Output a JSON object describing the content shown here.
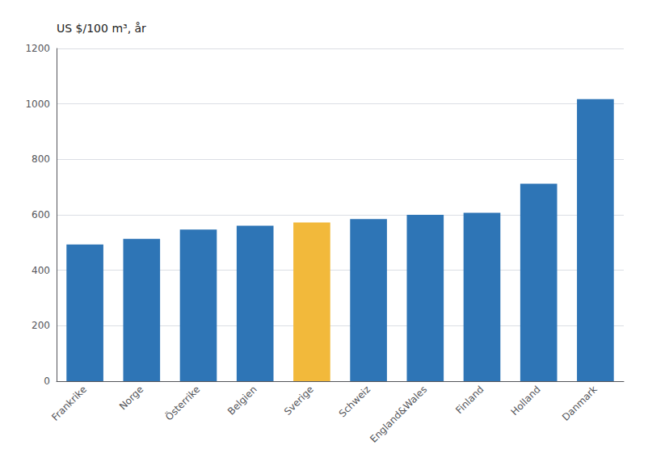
{
  "chart_data": {
    "type": "bar",
    "ylabel": "US $/100 m³, år",
    "categories": [
      "Frankrike",
      "Norge",
      "Österrike",
      "Belgien",
      "Sverige",
      "Schweiz",
      "England&Wales",
      "Finland",
      "Holland",
      "Danmark"
    ],
    "values": [
      493,
      513,
      547,
      561,
      572,
      585,
      600,
      607,
      712,
      1017
    ],
    "colors": [
      "#2e75b6",
      "#2e75b6",
      "#2e75b6",
      "#2e75b6",
      "#f2b93b",
      "#2e75b6",
      "#2e75b6",
      "#2e75b6",
      "#2e75b6",
      "#2e75b6"
    ],
    "ylim": [
      0,
      1200
    ],
    "yticks": [
      0,
      200,
      400,
      600,
      800,
      1000,
      1200
    ],
    "grid": true
  }
}
